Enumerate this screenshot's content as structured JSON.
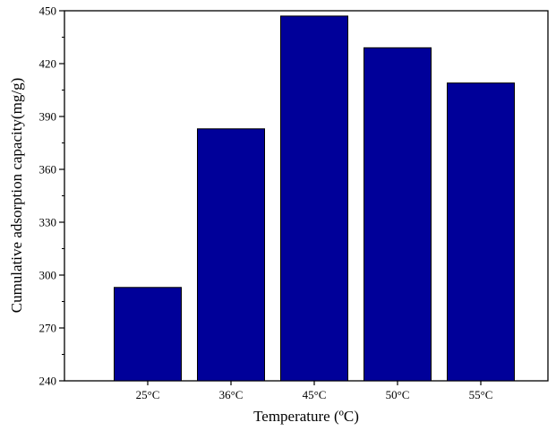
{
  "chart_data": {
    "type": "bar",
    "categories": [
      "25°C",
      "36°C",
      "45°C",
      "50°C",
      "55°C"
    ],
    "values": [
      293,
      383,
      447,
      429,
      409
    ],
    "xlabel": "Temperature (ºC)",
    "ylabel": "Cumulative adsorption capacity(mg/g)",
    "ylim": [
      240,
      450
    ],
    "yticks": [
      240,
      270,
      300,
      330,
      360,
      390,
      420,
      450
    ],
    "ytick_labels": [
      "240",
      "270",
      "300",
      "330",
      "360",
      "390",
      "420",
      "450"
    ],
    "grid": false,
    "legend": "none",
    "colors": {
      "bar_fill": "#000099",
      "bar_stroke": "#000000",
      "axis": "#000000"
    }
  }
}
